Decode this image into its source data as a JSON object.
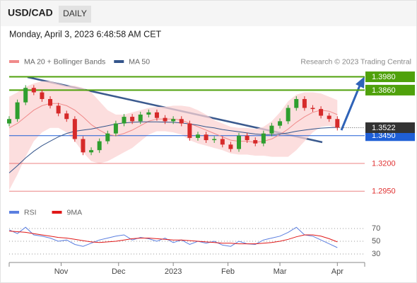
{
  "header": {
    "symbol": "USD/CAD",
    "period": "DAILY",
    "date": "Monday, April 3, 2023 6:48:58 AM CET"
  },
  "chart_data": [
    {
      "type": "candlestick",
      "attribution": "Research © 2023 Trading Central",
      "x": [
        0,
        3,
        6,
        9,
        12,
        15,
        18,
        21,
        24,
        27,
        30,
        33,
        36,
        39,
        42,
        45,
        48,
        51,
        54,
        57,
        60,
        63,
        66,
        69,
        72,
        75,
        78,
        81,
        84,
        87,
        90,
        93,
        96,
        99,
        102,
        105,
        108,
        111,
        114,
        117,
        120
      ],
      "xlim": [
        0,
        130
      ],
      "xticks": [
        {
          "value": 19,
          "label": "Nov"
        },
        {
          "value": 40,
          "label": "Dec"
        },
        {
          "value": 60,
          "label": "2023"
        },
        {
          "value": 80,
          "label": "Feb"
        },
        {
          "value": 99,
          "label": "Mar"
        },
        {
          "value": 120,
          "label": "Apr"
        }
      ],
      "ylim": [
        1.285,
        1.406
      ],
      "up_color": "#2e9e2e",
      "down_color": "#d62a2a",
      "open": [
        1.356,
        1.36,
        1.375,
        1.388,
        1.384,
        1.378,
        1.372,
        1.365,
        1.36,
        1.342,
        1.33,
        1.332,
        1.34,
        1.347,
        1.356,
        1.362,
        1.358,
        1.364,
        1.366,
        1.361,
        1.358,
        1.36,
        1.356,
        1.343,
        1.346,
        1.341,
        1.342,
        1.337,
        1.333,
        1.345,
        1.341,
        1.338,
        1.347,
        1.354,
        1.358,
        1.37,
        1.378,
        1.37,
        1.369,
        1.363,
        1.36
      ],
      "high": [
        1.3625,
        1.3775,
        1.3905,
        1.3905,
        1.3865,
        1.3805,
        1.3745,
        1.3675,
        1.3625,
        1.3445,
        1.3345,
        1.3425,
        1.3495,
        1.3585,
        1.3645,
        1.3645,
        1.3665,
        1.3685,
        1.3685,
        1.3635,
        1.3625,
        1.3625,
        1.3585,
        1.3485,
        1.3485,
        1.3445,
        1.3445,
        1.3395,
        1.3475,
        1.3475,
        1.3435,
        1.3495,
        1.3565,
        1.3605,
        1.3725,
        1.3805,
        1.3805,
        1.3725,
        1.3715,
        1.3655,
        1.3625
      ],
      "low": [
        1.3535,
        1.3575,
        1.3725,
        1.3815,
        1.3755,
        1.3695,
        1.3625,
        1.3575,
        1.3395,
        1.3275,
        1.3275,
        1.3295,
        1.3375,
        1.3445,
        1.3535,
        1.3555,
        1.3555,
        1.3615,
        1.3585,
        1.3555,
        1.3555,
        1.3535,
        1.3405,
        1.3405,
        1.3385,
        1.3385,
        1.3345,
        1.3305,
        1.3305,
        1.3385,
        1.3355,
        1.3355,
        1.3445,
        1.3515,
        1.3555,
        1.3675,
        1.3675,
        1.3665,
        1.3605,
        1.3575,
        1.3497
      ],
      "close": [
        1.36,
        1.375,
        1.388,
        1.384,
        1.378,
        1.372,
        1.365,
        1.36,
        1.342,
        1.33,
        1.332,
        1.34,
        1.347,
        1.356,
        1.362,
        1.358,
        1.364,
        1.366,
        1.361,
        1.358,
        1.36,
        1.356,
        1.343,
        1.346,
        1.341,
        1.342,
        1.337,
        1.333,
        1.345,
        1.341,
        1.338,
        1.347,
        1.354,
        1.358,
        1.37,
        1.378,
        1.37,
        1.369,
        1.363,
        1.36,
        1.3522
      ],
      "series": [
        {
          "name": "MA 20 + Bollinger Bands",
          "color": "#f08a8a",
          "band_color": "#fbd3d3",
          "values": [
            1.352,
            1.356,
            1.362,
            1.368,
            1.372,
            1.374,
            1.374,
            1.372,
            1.368,
            1.362,
            1.355,
            1.35,
            1.346,
            1.345,
            1.347,
            1.35,
            1.354,
            1.358,
            1.36,
            1.36,
            1.36,
            1.359,
            1.356,
            1.353,
            1.35,
            1.347,
            1.344,
            1.341,
            1.34,
            1.34,
            1.339,
            1.34,
            1.342,
            1.346,
            1.351,
            1.357,
            1.362,
            1.366,
            1.368,
            1.367,
            1.364
          ],
          "upper": [
            1.38,
            1.384,
            1.389,
            1.392,
            1.394,
            1.394,
            1.392,
            1.39,
            1.39,
            1.388,
            1.384,
            1.376,
            1.368,
            1.364,
            1.364,
            1.366,
            1.368,
            1.37,
            1.371,
            1.371,
            1.372,
            1.372,
            1.371,
            1.368,
            1.364,
            1.359,
            1.356,
            1.353,
            1.352,
            1.352,
            1.351,
            1.353,
            1.358,
            1.366,
            1.376,
            1.382,
            1.384,
            1.384,
            1.383,
            1.38,
            1.377
          ],
          "lower": [
            1.296,
            1.31,
            1.326,
            1.34,
            1.348,
            1.352,
            1.352,
            1.348,
            1.34,
            1.33,
            1.322,
            1.32,
            1.322,
            1.326,
            1.33,
            1.334,
            1.34,
            1.346,
            1.349,
            1.349,
            1.348,
            1.346,
            1.341,
            1.338,
            1.336,
            1.334,
            1.332,
            1.329,
            1.328,
            1.328,
            1.327,
            1.327,
            1.326,
            1.326,
            1.326,
            1.332,
            1.34,
            1.348,
            1.353,
            1.354,
            1.351
          ]
        },
        {
          "name": "MA 50",
          "color": "#34558b",
          "values": [
            1.3115,
            1.318,
            1.325,
            1.331,
            1.336,
            1.34,
            1.344,
            1.347,
            1.349,
            1.35,
            1.351,
            1.3525,
            1.354,
            1.3555,
            1.3565,
            1.357,
            1.3575,
            1.3575,
            1.3575,
            1.3572,
            1.357,
            1.3565,
            1.3555,
            1.3545,
            1.353,
            1.352,
            1.3505,
            1.3495,
            1.3485,
            1.3475,
            1.3465,
            1.346,
            1.346,
            1.3465,
            1.3475,
            1.349,
            1.35,
            1.351,
            1.3518,
            1.3522,
            1.3525
          ]
        }
      ],
      "levels": [
        {
          "value": 1.398,
          "label": "1.3980",
          "color": "#4fa10b",
          "boxed": true
        },
        {
          "value": 1.386,
          "label": "1.3860",
          "color": "#4fa10b",
          "boxed": true
        },
        {
          "value": 1.345,
          "label": "1.3450",
          "color": "#1f5fd6",
          "boxed": true
        },
        {
          "value": 1.32,
          "label": "1.3200",
          "color": "#e03030",
          "boxed": false
        },
        {
          "value": 1.295,
          "label": "1.2950",
          "color": "#e03030",
          "boxed": false
        }
      ],
      "last": {
        "value": 1.3522,
        "color": "#333333"
      }
    },
    {
      "type": "line",
      "ylim": [
        20,
        80
      ],
      "yticks": [
        70,
        50,
        30
      ],
      "series": [
        {
          "name": "RSI",
          "color": "#5b7fe0",
          "values": [
            68,
            62,
            72,
            60,
            58,
            55,
            50,
            52,
            45,
            42,
            47,
            52,
            55,
            58,
            60,
            52,
            56,
            54,
            50,
            55,
            48,
            52,
            45,
            50,
            47,
            50,
            44,
            42,
            50,
            46,
            45,
            52,
            55,
            58,
            64,
            72,
            60,
            58,
            52,
            46,
            40
          ]
        },
        {
          "name": "9MA",
          "color": "#e01818",
          "values": [
            66,
            65,
            64,
            62,
            60,
            58,
            56,
            55,
            53,
            51,
            49,
            48,
            49,
            50,
            52,
            54,
            55,
            55,
            54,
            53,
            52,
            52,
            51,
            50,
            49,
            48,
            47,
            47,
            46,
            46,
            46,
            47,
            48,
            50,
            53,
            57,
            60,
            60,
            58,
            54,
            49
          ]
        }
      ]
    }
  ]
}
